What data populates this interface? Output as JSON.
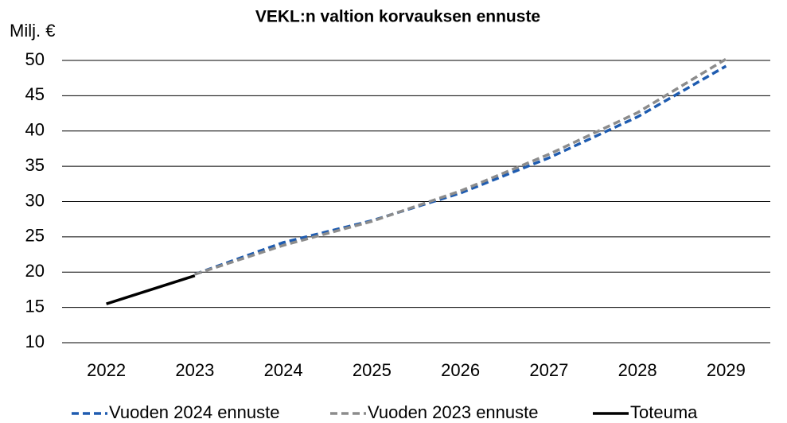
{
  "chart_data": {
    "type": "line",
    "title": "VEKL:n valtion korvauksen ennuste",
    "y_label": "Milj. €",
    "categories": [
      "2022",
      "2023",
      "2024",
      "2025",
      "2026",
      "2027",
      "2028",
      "2029"
    ],
    "series": [
      {
        "name": "Vuoden 2024 ennuste",
        "color": "#1f5cb0",
        "dash": true,
        "values": [
          null,
          19.7,
          24.2,
          27.3,
          31.2,
          36.2,
          42.0,
          49.2
        ]
      },
      {
        "name": "Vuoden 2023 ennuste",
        "color": "#8c8c8c",
        "dash": true,
        "values": [
          null,
          19.7,
          23.8,
          27.2,
          31.5,
          36.7,
          42.6,
          50.2
        ]
      },
      {
        "name": "Toteuma",
        "color": "#000000",
        "dash": false,
        "values": [
          15.5,
          19.5,
          null,
          null,
          null,
          null,
          null,
          null
        ]
      }
    ],
    "ylim": [
      10,
      50
    ],
    "yticks": [
      10,
      15,
      20,
      25,
      30,
      35,
      40,
      45,
      50
    ],
    "grid": true,
    "legend": "bottom"
  }
}
